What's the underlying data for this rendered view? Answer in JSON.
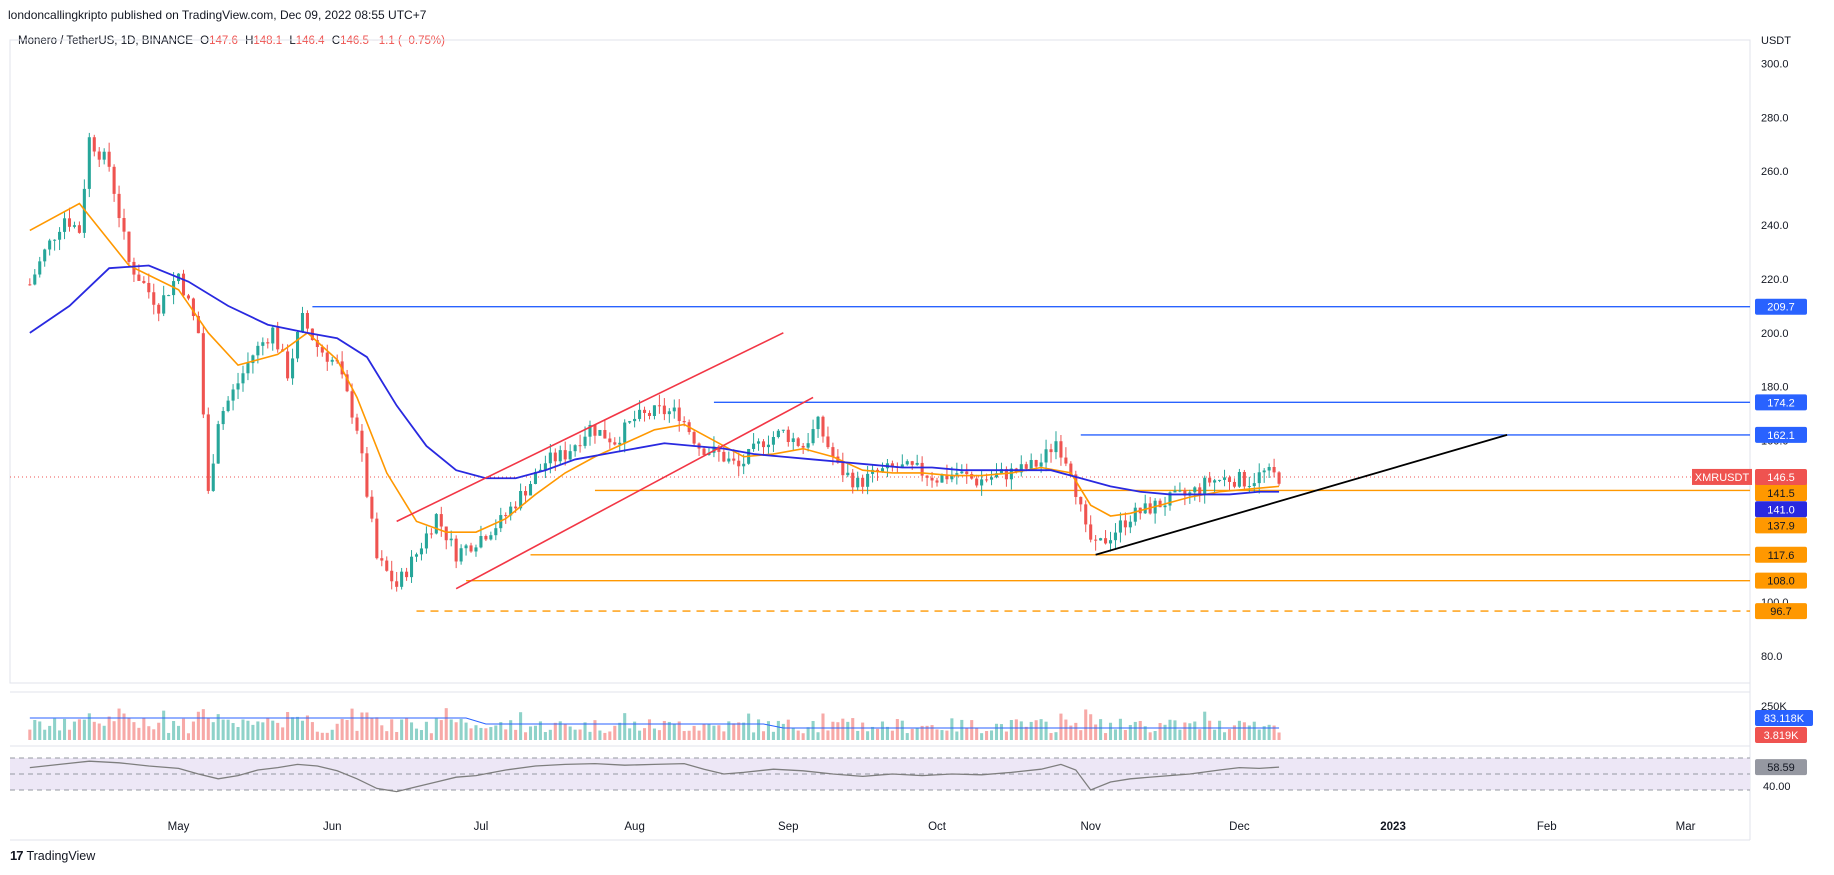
{
  "header": {
    "published": "londoncallingkripto published on TradingView.com, Dec 09, 2022 08:55 UTC+7"
  },
  "legend": {
    "symbol": "Monero / TetherUS, 1D, BINANCE",
    "o_label": "O",
    "o": "147.6",
    "h_label": "H",
    "h": "148.1",
    "l_label": "L",
    "l": "146.4",
    "c_label": "C",
    "c": "146.5",
    "change": "−1.1 (−0.75%)"
  },
  "footer": {
    "brand": "TradingView",
    "logo": "17"
  },
  "colors": {
    "up": "#26a69a",
    "down": "#ef5350",
    "ema_short": "#ff9800",
    "ema_long": "#2929e0",
    "hline_blue": "#2962ff",
    "hline_orange": "#ff9800",
    "channel": "#f23645",
    "trendline": "#000000",
    "rsi_bg": "#ede7f6",
    "rsi_line": "#7e7e7e"
  },
  "chart_data": {
    "type": "candlestick",
    "currency": "USDT",
    "y_range": [
      70,
      305
    ],
    "y_ticks": [
      "300.0",
      "280.0",
      "260.0",
      "240.0",
      "220.0",
      "200.0",
      "180.0",
      "160.0",
      "100.0",
      "80.0"
    ],
    "x_ticks": [
      "May",
      "Jun",
      "Jul",
      "Aug",
      "Sep",
      "Oct",
      "Nov",
      "Dec",
      "2023",
      "Feb",
      "Mar"
    ],
    "x_tick_days": [
      30,
      61,
      91,
      122,
      153,
      183,
      214,
      244,
      275,
      306,
      334
    ],
    "first_day": 0,
    "last_day": 252,
    "candles_close_path": [
      [
        0,
        218
      ],
      [
        3,
        230
      ],
      [
        7,
        243
      ],
      [
        10,
        238
      ],
      [
        12,
        272
      ],
      [
        16,
        262
      ],
      [
        20,
        226
      ],
      [
        26,
        210
      ],
      [
        30,
        222
      ],
      [
        34,
        200
      ],
      [
        36,
        140
      ],
      [
        38,
        168
      ],
      [
        41,
        178
      ],
      [
        45,
        192
      ],
      [
        49,
        201
      ],
      [
        52,
        185
      ],
      [
        55,
        205
      ],
      [
        58,
        195
      ],
      [
        62,
        188
      ],
      [
        66,
        165
      ],
      [
        70,
        116
      ],
      [
        74,
        106
      ],
      [
        78,
        118
      ],
      [
        82,
        132
      ],
      [
        86,
        118
      ],
      [
        90,
        123
      ],
      [
        95,
        130
      ],
      [
        100,
        142
      ],
      [
        104,
        152
      ],
      [
        108,
        155
      ],
      [
        113,
        165
      ],
      [
        118,
        160
      ],
      [
        122,
        168
      ],
      [
        127,
        171
      ],
      [
        131,
        170
      ],
      [
        135,
        158
      ],
      [
        139,
        155
      ],
      [
        143,
        150
      ],
      [
        148,
        160
      ],
      [
        152,
        163
      ],
      [
        156,
        158
      ],
      [
        159,
        166
      ],
      [
        163,
        150
      ],
      [
        167,
        144
      ],
      [
        171,
        148
      ],
      [
        175,
        150
      ],
      [
        179,
        149
      ],
      [
        183,
        146
      ],
      [
        187,
        148
      ],
      [
        191,
        145
      ],
      [
        195,
        147
      ],
      [
        200,
        149
      ],
      [
        204,
        152
      ],
      [
        207,
        160
      ],
      [
        210,
        150
      ],
      [
        213,
        126
      ],
      [
        215,
        120
      ],
      [
        218,
        125
      ],
      [
        222,
        132
      ],
      [
        226,
        135
      ],
      [
        230,
        138
      ],
      [
        234,
        140
      ],
      [
        238,
        145
      ],
      [
        242,
        146
      ],
      [
        246,
        145
      ],
      [
        249,
        148
      ],
      [
        252,
        146.5
      ]
    ],
    "ema_short": [
      [
        0,
        238
      ],
      [
        10,
        248
      ],
      [
        20,
        225
      ],
      [
        30,
        216
      ],
      [
        36,
        200
      ],
      [
        42,
        188
      ],
      [
        50,
        192
      ],
      [
        56,
        200
      ],
      [
        62,
        190
      ],
      [
        66,
        176
      ],
      [
        72,
        148
      ],
      [
        78,
        130
      ],
      [
        84,
        126
      ],
      [
        90,
        126
      ],
      [
        96,
        131
      ],
      [
        102,
        140
      ],
      [
        108,
        148
      ],
      [
        114,
        154
      ],
      [
        120,
        159
      ],
      [
        126,
        164
      ],
      [
        132,
        166
      ],
      [
        138,
        160
      ],
      [
        144,
        154
      ],
      [
        150,
        155
      ],
      [
        156,
        157
      ],
      [
        162,
        154
      ],
      [
        168,
        149
      ],
      [
        174,
        148
      ],
      [
        180,
        148
      ],
      [
        186,
        147
      ],
      [
        192,
        147
      ],
      [
        198,
        148
      ],
      [
        204,
        150
      ],
      [
        210,
        148
      ],
      [
        214,
        136
      ],
      [
        218,
        132
      ],
      [
        222,
        133
      ],
      [
        228,
        136
      ],
      [
        234,
        139
      ],
      [
        240,
        141
      ],
      [
        246,
        142
      ],
      [
        252,
        143
      ]
    ],
    "ema_long": [
      [
        0,
        200
      ],
      [
        8,
        210
      ],
      [
        16,
        224
      ],
      [
        24,
        225
      ],
      [
        32,
        219
      ],
      [
        40,
        210
      ],
      [
        48,
        203
      ],
      [
        56,
        200
      ],
      [
        62,
        198
      ],
      [
        68,
        191
      ],
      [
        74,
        173
      ],
      [
        80,
        158
      ],
      [
        86,
        149
      ],
      [
        92,
        146
      ],
      [
        98,
        146
      ],
      [
        104,
        149
      ],
      [
        110,
        153
      ],
      [
        116,
        155
      ],
      [
        122,
        157
      ],
      [
        128,
        159
      ],
      [
        134,
        158
      ],
      [
        140,
        157
      ],
      [
        146,
        155
      ],
      [
        152,
        154
      ],
      [
        158,
        153
      ],
      [
        164,
        152
      ],
      [
        170,
        151
      ],
      [
        176,
        150
      ],
      [
        182,
        150
      ],
      [
        188,
        149
      ],
      [
        194,
        149
      ],
      [
        200,
        149
      ],
      [
        206,
        149
      ],
      [
        212,
        146
      ],
      [
        218,
        143
      ],
      [
        224,
        141
      ],
      [
        230,
        140
      ],
      [
        236,
        140
      ],
      [
        242,
        140
      ],
      [
        248,
        141
      ],
      [
        252,
        141
      ]
    ],
    "channel_lines": [
      [
        [
          74,
          130
        ],
        [
          152,
          200
        ]
      ],
      [
        [
          86,
          105
        ],
        [
          158,
          176
        ]
      ]
    ],
    "trendline": [
      [
        215,
        117.6
      ],
      [
        298,
        162.1
      ]
    ],
    "levels": [
      {
        "value": 209.7,
        "label": "209.7",
        "color": "blue",
        "from_day": 57,
        "style": "solid"
      },
      {
        "value": 174.2,
        "label": "174.2",
        "color": "blue",
        "from_day": 138,
        "style": "solid"
      },
      {
        "value": 162.1,
        "label": "162.1",
        "color": "blue",
        "from_day": 212,
        "style": "solid"
      },
      {
        "value": 141.5,
        "label": "141.5",
        "color": "orange",
        "from_day": 114,
        "style": "solid"
      },
      {
        "value": 117.6,
        "label": "117.6",
        "color": "orange",
        "from_day": 101,
        "style": "solid"
      },
      {
        "value": 108.0,
        "label": "108.0",
        "color": "orange",
        "from_day": 88,
        "style": "solid"
      },
      {
        "value": 96.7,
        "label": "96.7",
        "color": "orange",
        "from_day": 78,
        "style": "dashed"
      }
    ],
    "price_tags": [
      {
        "label": "XMRUSDT",
        "value": "146.5",
        "y": 146.5,
        "bg": "#ef5350"
      },
      {
        "label": "",
        "value": "141.5",
        "y": 140.5,
        "bg": "#ff9800"
      },
      {
        "label": "",
        "value": "141.0",
        "y": 134.5,
        "bg": "#2929e0"
      },
      {
        "label": "",
        "value": "137.9",
        "y": 128.5,
        "bg": "#ff9800"
      }
    ],
    "volume": {
      "axis_label": "250K",
      "current_volume": "83.118K",
      "current_avg": "3.819K",
      "max": 250
    },
    "rsi": {
      "value": "58.59",
      "tick": "40.00",
      "series": [
        [
          0,
          58
        ],
        [
          6,
          62
        ],
        [
          12,
          66
        ],
        [
          18,
          64
        ],
        [
          24,
          60
        ],
        [
          30,
          57
        ],
        [
          34,
          50
        ],
        [
          38,
          44
        ],
        [
          42,
          48
        ],
        [
          46,
          55
        ],
        [
          50,
          58
        ],
        [
          54,
          62
        ],
        [
          58,
          60
        ],
        [
          62,
          54
        ],
        [
          66,
          44
        ],
        [
          70,
          32
        ],
        [
          74,
          28
        ],
        [
          78,
          34
        ],
        [
          82,
          40
        ],
        [
          86,
          46
        ],
        [
          90,
          48
        ],
        [
          96,
          55
        ],
        [
          102,
          60
        ],
        [
          108,
          62
        ],
        [
          114,
          63
        ],
        [
          120,
          61
        ],
        [
          126,
          62
        ],
        [
          132,
          63
        ],
        [
          136,
          56
        ],
        [
          140,
          50
        ],
        [
          144,
          52
        ],
        [
          150,
          56
        ],
        [
          156,
          54
        ],
        [
          162,
          50
        ],
        [
          168,
          47
        ],
        [
          174,
          50
        ],
        [
          180,
          48
        ],
        [
          186,
          50
        ],
        [
          192,
          49
        ],
        [
          198,
          52
        ],
        [
          204,
          56
        ],
        [
          208,
          62
        ],
        [
          211,
          55
        ],
        [
          214,
          30
        ],
        [
          218,
          40
        ],
        [
          222,
          44
        ],
        [
          228,
          47
        ],
        [
          234,
          50
        ],
        [
          240,
          55
        ],
        [
          244,
          58
        ],
        [
          248,
          57
        ],
        [
          252,
          58.6
        ]
      ]
    }
  }
}
